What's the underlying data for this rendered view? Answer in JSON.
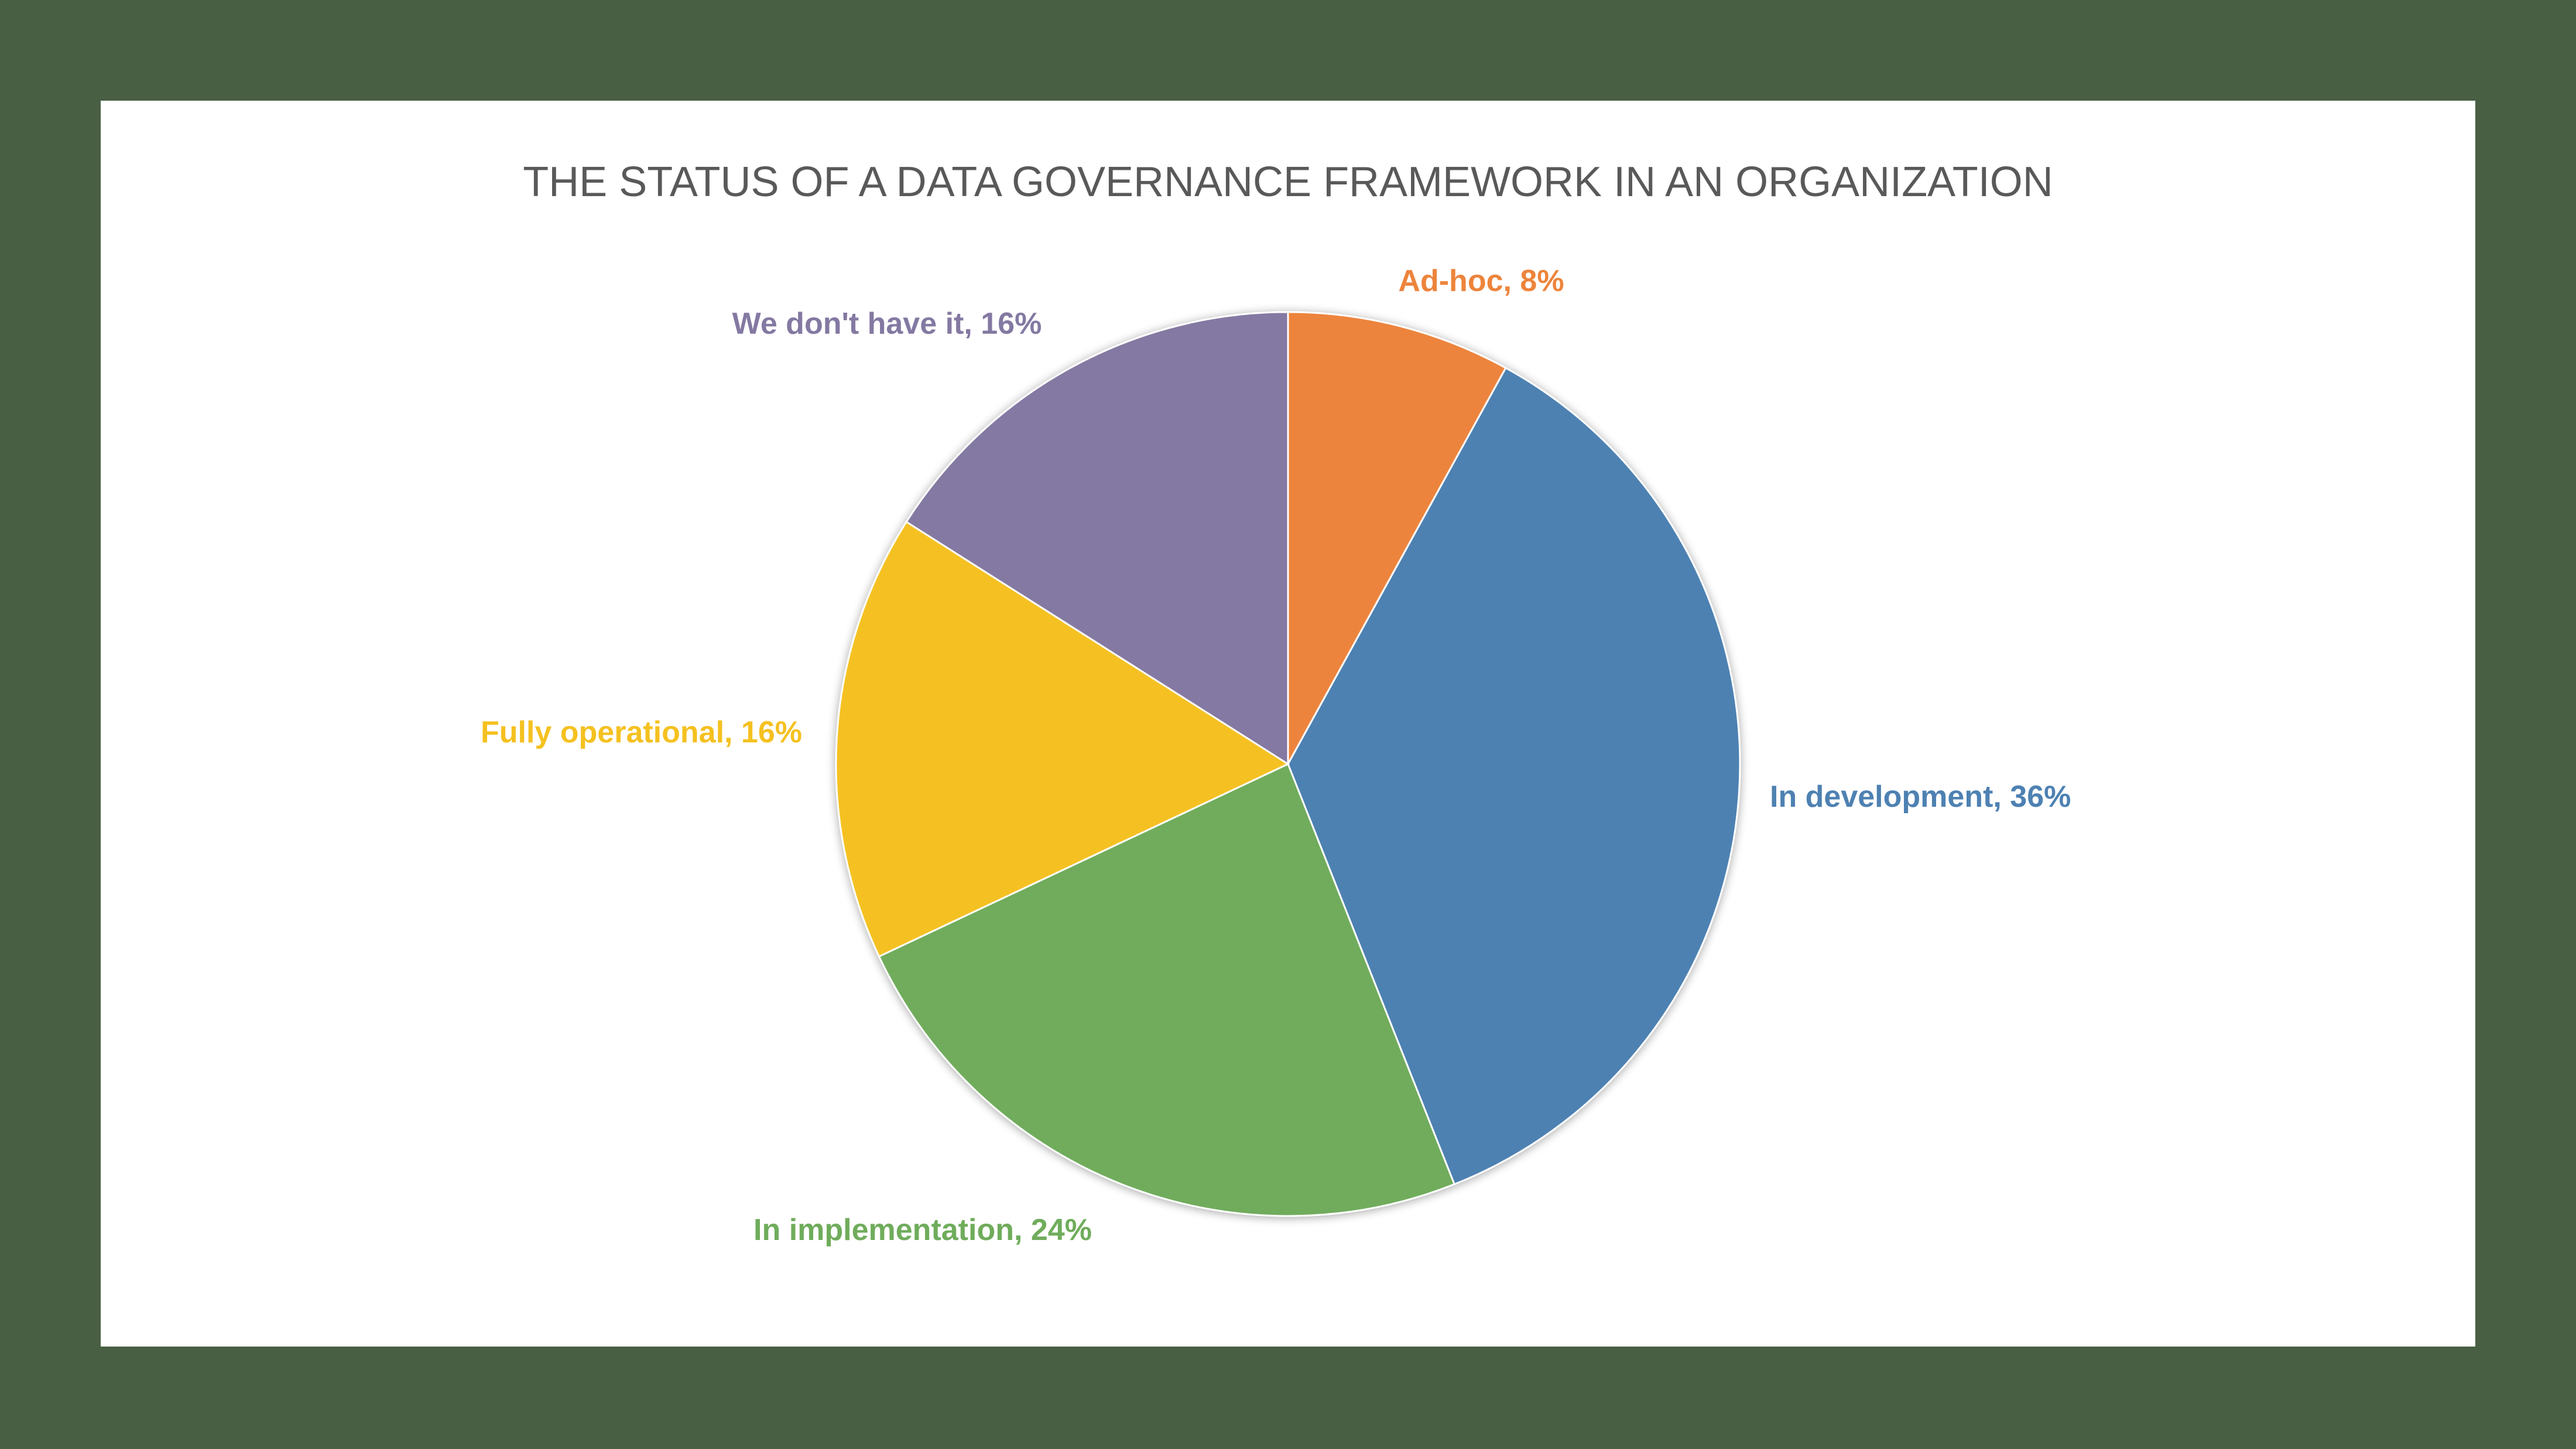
{
  "chart_data": {
    "type": "pie",
    "title": "THE STATUS OF A DATA GOVERNANCE FRAMEWORK IN AN ORGANIZATION",
    "slices": [
      {
        "label": "Ad-hoc",
        "value": 8,
        "value_text": "8%",
        "color": "#ed843c",
        "label_position": "top"
      },
      {
        "label": "In development",
        "value": 36,
        "value_text": "36%",
        "color": "#4e81b2",
        "label_position": "right"
      },
      {
        "label": "In implementation",
        "value": 24,
        "value_text": "24%",
        "color": "#6fac5b",
        "label_position": "bottom-left"
      },
      {
        "label": "Fully operational",
        "value": 16,
        "value_text": "16%",
        "color": "#f5c120",
        "label_position": "left"
      },
      {
        "label": "We don't have it",
        "value": 16,
        "value_text": "16%",
        "color": "#8479a2",
        "label_position": "top-left"
      }
    ],
    "start_angle": "12 o'clock",
    "direction": "clockwise",
    "legend": "none"
  },
  "colors": {
    "background": "#485f43",
    "card": "#ffffff",
    "title": "#595959"
  }
}
